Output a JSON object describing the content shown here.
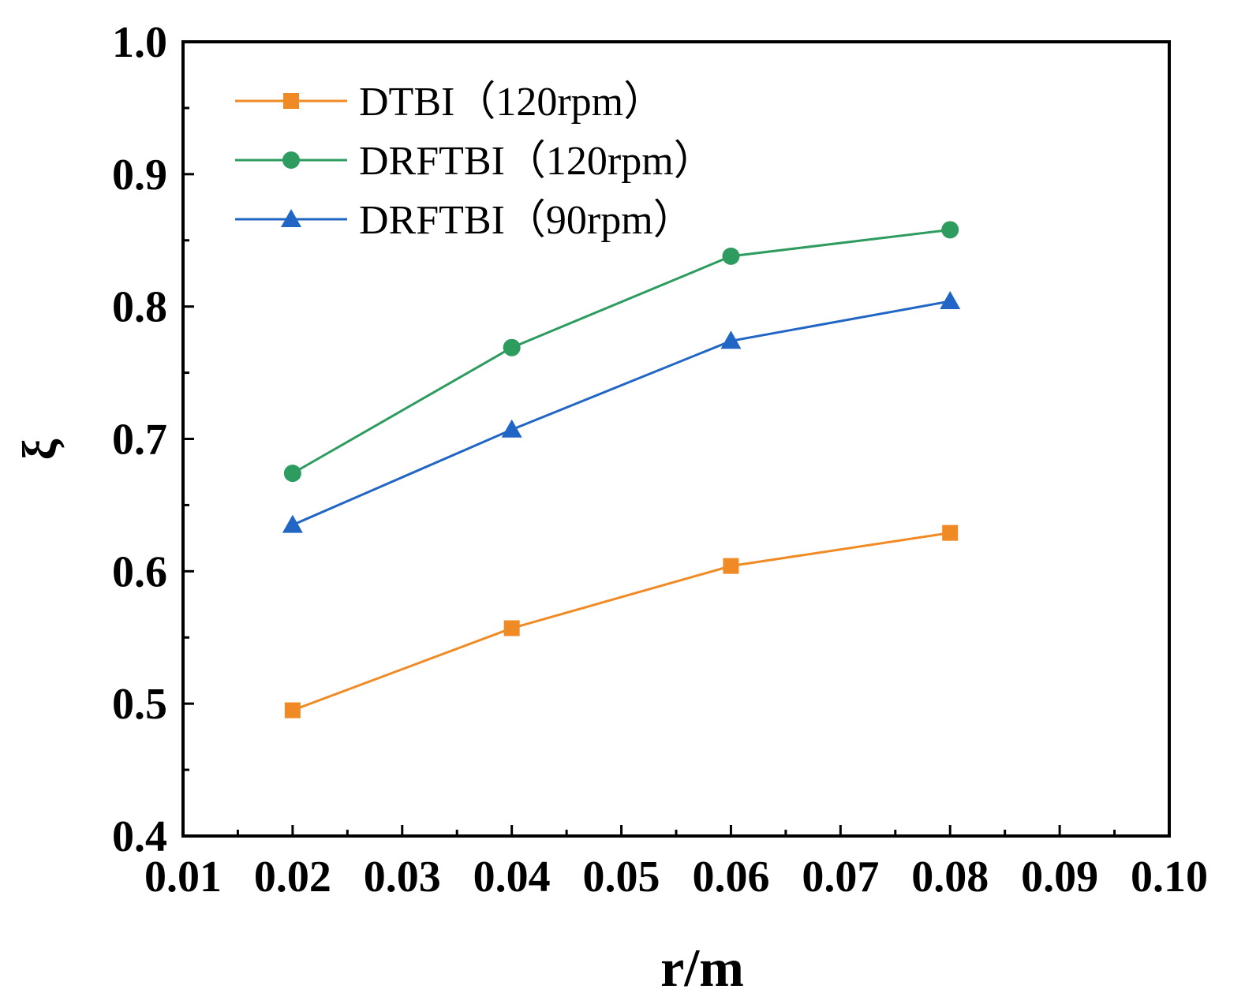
{
  "chart_data": {
    "type": "line",
    "title": "",
    "xlabel": "r/m",
    "ylabel": "ξ",
    "xlim": [
      0.01,
      0.1
    ],
    "ylim": [
      0.4,
      1.0
    ],
    "x_ticks": [
      "0.01",
      "0.02",
      "0.03",
      "0.04",
      "0.05",
      "0.06",
      "0.07",
      "0.08",
      "0.09",
      "0.10"
    ],
    "y_ticks": [
      "0.4",
      "0.5",
      "0.6",
      "0.7",
      "0.8",
      "0.9",
      "1.0"
    ],
    "legend_position": "top-left",
    "series": [
      {
        "name": "DTBI（120rpm）",
        "color": "#F08A24",
        "marker": "square",
        "x": [
          0.02,
          0.04,
          0.06,
          0.08
        ],
        "values": [
          0.495,
          0.557,
          0.604,
          0.629
        ]
      },
      {
        "name": "DRFTBI（120rpm）",
        "color": "#2E9B5F",
        "marker": "circle",
        "x": [
          0.02,
          0.04,
          0.06,
          0.08
        ],
        "values": [
          0.674,
          0.769,
          0.838,
          0.858
        ]
      },
      {
        "name": "DRFTBI（90rpm）",
        "color": "#2166C4",
        "marker": "triangle",
        "x": [
          0.02,
          0.04,
          0.06,
          0.08
        ],
        "values": [
          0.635,
          0.707,
          0.774,
          0.804
        ]
      }
    ]
  }
}
